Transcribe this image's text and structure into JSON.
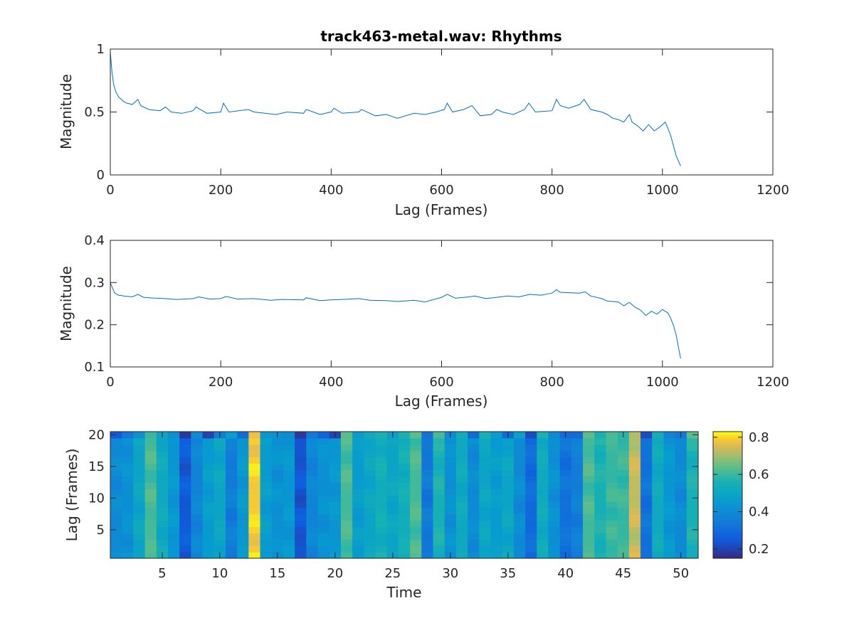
{
  "chart_data": [
    {
      "type": "line",
      "title": "track463-metal.wav: Rhythms",
      "xlabel": "Lag (Frames)",
      "ylabel": "Magnitude",
      "xlim": [
        0,
        1200
      ],
      "ylim": [
        0,
        1
      ],
      "xticks": [
        0,
        200,
        400,
        600,
        800,
        1000,
        1200
      ],
      "yticks": [
        0,
        0.5,
        1
      ],
      "grid": false,
      "color": "#0072BD",
      "series": [
        {
          "points": [
            [
              0,
              0.98
            ],
            [
              3,
              0.82
            ],
            [
              6,
              0.72
            ],
            [
              10,
              0.66
            ],
            [
              15,
              0.62
            ],
            [
              20,
              0.6
            ],
            [
              25,
              0.58
            ],
            [
              30,
              0.57
            ],
            [
              40,
              0.56
            ],
            [
              50,
              0.6
            ],
            [
              55,
              0.55
            ],
            [
              70,
              0.52
            ],
            [
              90,
              0.51
            ],
            [
              100,
              0.54
            ],
            [
              110,
              0.5
            ],
            [
              130,
              0.49
            ],
            [
              150,
              0.51
            ],
            [
              155,
              0.54
            ],
            [
              175,
              0.49
            ],
            [
              200,
              0.5
            ],
            [
              205,
              0.57
            ],
            [
              215,
              0.5
            ],
            [
              250,
              0.52
            ],
            [
              260,
              0.5
            ],
            [
              300,
              0.48
            ],
            [
              320,
              0.5
            ],
            [
              350,
              0.49
            ],
            [
              355,
              0.52
            ],
            [
              380,
              0.48
            ],
            [
              400,
              0.5
            ],
            [
              405,
              0.53
            ],
            [
              420,
              0.49
            ],
            [
              450,
              0.5
            ],
            [
              455,
              0.52
            ],
            [
              480,
              0.47
            ],
            [
              500,
              0.48
            ],
            [
              520,
              0.45
            ],
            [
              550,
              0.49
            ],
            [
              570,
              0.48
            ],
            [
              590,
              0.5
            ],
            [
              605,
              0.52
            ],
            [
              610,
              0.57
            ],
            [
              620,
              0.5
            ],
            [
              640,
              0.52
            ],
            [
              655,
              0.55
            ],
            [
              670,
              0.47
            ],
            [
              690,
              0.48
            ],
            [
              700,
              0.52
            ],
            [
              710,
              0.5
            ],
            [
              730,
              0.48
            ],
            [
              750,
              0.52
            ],
            [
              758,
              0.57
            ],
            [
              770,
              0.5
            ],
            [
              800,
              0.51
            ],
            [
              808,
              0.6
            ],
            [
              815,
              0.55
            ],
            [
              830,
              0.53
            ],
            [
              850,
              0.56
            ],
            [
              858,
              0.6
            ],
            [
              870,
              0.52
            ],
            [
              890,
              0.5
            ],
            [
              900,
              0.48
            ],
            [
              910,
              0.45
            ],
            [
              920,
              0.44
            ],
            [
              930,
              0.42
            ],
            [
              940,
              0.48
            ],
            [
              945,
              0.42
            ],
            [
              955,
              0.39
            ],
            [
              965,
              0.35
            ],
            [
              975,
              0.4
            ],
            [
              985,
              0.35
            ],
            [
              995,
              0.38
            ],
            [
              1005,
              0.42
            ],
            [
              1010,
              0.37
            ],
            [
              1015,
              0.31
            ],
            [
              1020,
              0.23
            ],
            [
              1025,
              0.15
            ],
            [
              1030,
              0.1
            ],
            [
              1033,
              0.07
            ]
          ]
        }
      ]
    },
    {
      "type": "line",
      "title": "",
      "xlabel": "Lag (Frames)",
      "ylabel": "Magnitude",
      "xlim": [
        0,
        1200
      ],
      "ylim": [
        0.1,
        0.4
      ],
      "xticks": [
        0,
        200,
        400,
        600,
        800,
        1000,
        1200
      ],
      "yticks": [
        0.1,
        0.2,
        0.3,
        0.4
      ],
      "grid": false,
      "color": "#0072BD",
      "series": [
        {
          "points": [
            [
              0,
              0.3
            ],
            [
              3,
              0.29
            ],
            [
              8,
              0.275
            ],
            [
              15,
              0.27
            ],
            [
              25,
              0.268
            ],
            [
              40,
              0.266
            ],
            [
              50,
              0.272
            ],
            [
              60,
              0.265
            ],
            [
              80,
              0.263
            ],
            [
              100,
              0.262
            ],
            [
              120,
              0.26
            ],
            [
              150,
              0.262
            ],
            [
              160,
              0.266
            ],
            [
              180,
              0.261
            ],
            [
              200,
              0.262
            ],
            [
              210,
              0.267
            ],
            [
              230,
              0.261
            ],
            [
              260,
              0.262
            ],
            [
              290,
              0.258
            ],
            [
              310,
              0.26
            ],
            [
              350,
              0.259
            ],
            [
              355,
              0.264
            ],
            [
              380,
              0.257
            ],
            [
              400,
              0.259
            ],
            [
              420,
              0.26
            ],
            [
              450,
              0.262
            ],
            [
              470,
              0.258
            ],
            [
              500,
              0.257
            ],
            [
              520,
              0.255
            ],
            [
              550,
              0.258
            ],
            [
              570,
              0.254
            ],
            [
              600,
              0.265
            ],
            [
              610,
              0.272
            ],
            [
              625,
              0.263
            ],
            [
              650,
              0.266
            ],
            [
              660,
              0.268
            ],
            [
              680,
              0.262
            ],
            [
              700,
              0.265
            ],
            [
              720,
              0.268
            ],
            [
              740,
              0.266
            ],
            [
              760,
              0.272
            ],
            [
              780,
              0.27
            ],
            [
              800,
              0.275
            ],
            [
              808,
              0.283
            ],
            [
              815,
              0.277
            ],
            [
              830,
              0.276
            ],
            [
              850,
              0.275
            ],
            [
              860,
              0.278
            ],
            [
              870,
              0.268
            ],
            [
              890,
              0.262
            ],
            [
              900,
              0.256
            ],
            [
              920,
              0.254
            ],
            [
              930,
              0.245
            ],
            [
              940,
              0.253
            ],
            [
              950,
              0.242
            ],
            [
              960,
              0.235
            ],
            [
              970,
              0.222
            ],
            [
              980,
              0.232
            ],
            [
              990,
              0.225
            ],
            [
              1000,
              0.236
            ],
            [
              1010,
              0.228
            ],
            [
              1015,
              0.215
            ],
            [
              1020,
              0.198
            ],
            [
              1025,
              0.175
            ],
            [
              1030,
              0.14
            ],
            [
              1033,
              0.12
            ]
          ]
        }
      ]
    },
    {
      "type": "heatmap",
      "title": "",
      "xlabel": "Time",
      "ylabel": "Lag (Frames)",
      "xlim": [
        0.5,
        51.5
      ],
      "ylim": [
        0.5,
        20.5
      ],
      "xticks": [
        5,
        10,
        15,
        20,
        25,
        30,
        35,
        40,
        45,
        50
      ],
      "yticks": [
        5,
        10,
        15,
        20
      ],
      "colormap": "parula",
      "clim": [
        0.15,
        0.83
      ],
      "colorbar_ticks": [
        0.2,
        0.4,
        0.6,
        0.8
      ],
      "colorbar_tick_labels": [
        "0.2",
        "0.4",
        "0.6",
        "0.8"
      ],
      "rows": 20,
      "columns": 51,
      "column_values": [
        0.4,
        0.42,
        0.5,
        0.62,
        0.52,
        0.44,
        0.25,
        0.38,
        0.46,
        0.5,
        0.35,
        0.44,
        0.8,
        0.46,
        0.42,
        0.44,
        0.24,
        0.38,
        0.42,
        0.44,
        0.62,
        0.46,
        0.5,
        0.54,
        0.5,
        0.54,
        0.62,
        0.34,
        0.56,
        0.42,
        0.52,
        0.4,
        0.5,
        0.46,
        0.5,
        0.4,
        0.3,
        0.52,
        0.42,
        0.32,
        0.36,
        0.62,
        0.56,
        0.6,
        0.6,
        0.74,
        0.32,
        0.52,
        0.44,
        0.4,
        0.56
      ],
      "top_row_values": [
        0.25,
        0.34,
        0.42,
        0.6,
        0.5,
        0.42,
        0.18,
        0.4,
        0.2,
        0.36,
        0.46,
        0.3,
        0.78,
        0.44,
        0.42,
        0.4,
        0.18,
        0.34,
        0.28,
        0.2,
        0.64,
        0.46,
        0.52,
        0.56,
        0.48,
        0.56,
        0.64,
        0.32,
        0.62,
        0.4,
        0.54,
        0.3,
        0.56,
        0.46,
        0.3,
        0.48,
        0.22,
        0.56,
        0.4,
        0.3,
        0.3,
        0.64,
        0.56,
        0.62,
        0.58,
        0.72,
        0.22,
        0.54,
        0.38,
        0.34,
        0.64
      ]
    }
  ]
}
